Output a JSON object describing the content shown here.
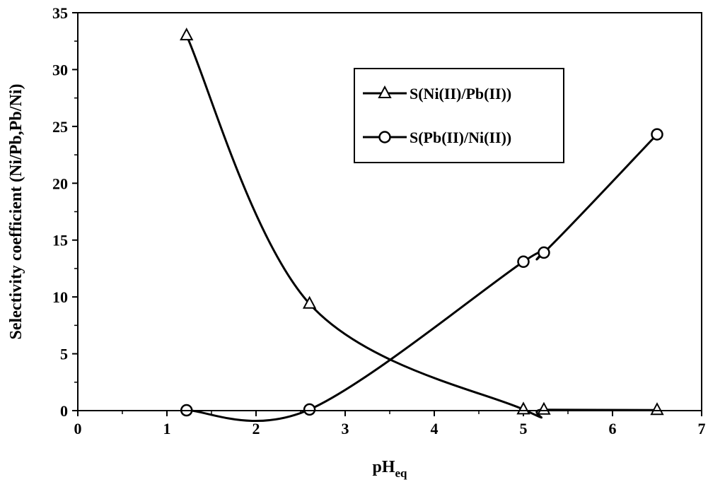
{
  "chart_data": {
    "type": "line",
    "title": "",
    "xlabel": "pH",
    "xlabel_sub": "eq",
    "ylabel": "Selectivity coefficient (Ni/Pb,Pb/Ni)",
    "xlim": [
      0,
      7
    ],
    "ylim": [
      0,
      35
    ],
    "xticks": [
      0,
      1,
      2,
      3,
      4,
      5,
      6,
      7
    ],
    "yticks": [
      0,
      5,
      10,
      15,
      20,
      25,
      30,
      35
    ],
    "grid": false,
    "legend_position": "top-right",
    "series": [
      {
        "name": "S(Ni(II)/Pb(II))",
        "marker": "triangle",
        "color": "#000000",
        "x": [
          1.22,
          2.6,
          5.0,
          5.23,
          6.5
        ],
        "y": [
          33.0,
          9.4,
          0.1,
          0.08,
          0.05
        ]
      },
      {
        "name": "S(Pb(II)/Ni(II))",
        "marker": "circle",
        "color": "#000000",
        "x": [
          1.22,
          2.6,
          5.0,
          5.23,
          6.5
        ],
        "y": [
          0.03,
          0.1,
          13.1,
          13.9,
          24.3
        ]
      }
    ]
  }
}
